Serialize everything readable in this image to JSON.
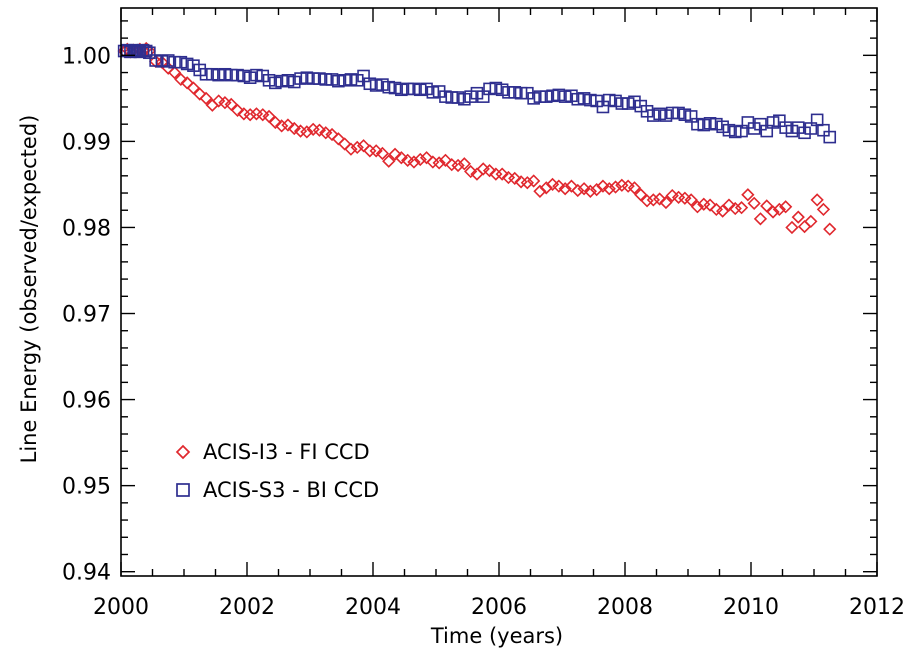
{
  "chart_data": {
    "type": "scatter",
    "title": "",
    "xlabel": "Time (years)",
    "ylabel": "Line Energy (observed/expected)",
    "xlim": [
      2000,
      2012
    ],
    "ylim": [
      0.9395,
      1.0055
    ],
    "x_ticks": [
      2000,
      2002,
      2004,
      2006,
      2008,
      2010,
      2012
    ],
    "x_tick_labels": [
      "2000",
      "2002",
      "2004",
      "2006",
      "2008",
      "2010",
      "2012"
    ],
    "y_ticks": [
      0.94,
      0.95,
      0.96,
      0.97,
      0.98,
      0.99,
      1.0
    ],
    "y_tick_labels": [
      "0.94",
      "0.95",
      "0.96",
      "0.97",
      "0.98",
      "0.99",
      "1.00"
    ],
    "grid": false,
    "legend_position": "lower-left",
    "series": [
      {
        "name": "ACIS-I3 - FI CCD",
        "marker": "diamond",
        "color": "#e0282e",
        "points": [
          [
            2000.05,
            1.0005
          ],
          [
            2000.1,
            1.0007
          ],
          [
            2000.15,
            1.0004
          ],
          [
            2000.2,
            1.0006
          ],
          [
            2000.25,
            1.0005
          ],
          [
            2000.3,
            1.0007
          ],
          [
            2000.35,
            1.0006
          ],
          [
            2000.4,
            1.0008
          ],
          [
            2000.45,
            1.0005
          ],
          [
            2000.55,
            0.9993
          ],
          [
            2000.65,
            0.9992
          ],
          [
            2000.75,
            0.9985
          ],
          [
            2000.85,
            0.998
          ],
          [
            2000.95,
            0.9972
          ],
          [
            2001.05,
            0.9968
          ],
          [
            2001.15,
            0.9962
          ],
          [
            2001.25,
            0.9955
          ],
          [
            2001.35,
            0.995
          ],
          [
            2001.45,
            0.9942
          ],
          [
            2001.55,
            0.9947
          ],
          [
            2001.65,
            0.9945
          ],
          [
            2001.75,
            0.9943
          ],
          [
            2001.85,
            0.9936
          ],
          [
            2001.95,
            0.9932
          ],
          [
            2002.05,
            0.9931
          ],
          [
            2002.15,
            0.9932
          ],
          [
            2002.25,
            0.9931
          ],
          [
            2002.35,
            0.9929
          ],
          [
            2002.45,
            0.9922
          ],
          [
            2002.55,
            0.9918
          ],
          [
            2002.65,
            0.9919
          ],
          [
            2002.75,
            0.9915
          ],
          [
            2002.85,
            0.9912
          ],
          [
            2002.95,
            0.9911
          ],
          [
            2003.05,
            0.9914
          ],
          [
            2003.15,
            0.9913
          ],
          [
            2003.25,
            0.991
          ],
          [
            2003.35,
            0.9908
          ],
          [
            2003.45,
            0.9903
          ],
          [
            2003.55,
            0.9897
          ],
          [
            2003.65,
            0.9891
          ],
          [
            2003.75,
            0.9893
          ],
          [
            2003.85,
            0.9895
          ],
          [
            2003.95,
            0.9889
          ],
          [
            2004.05,
            0.9889
          ],
          [
            2004.15,
            0.9886
          ],
          [
            2004.25,
            0.9877
          ],
          [
            2004.35,
            0.9885
          ],
          [
            2004.45,
            0.9881
          ],
          [
            2004.55,
            0.9878
          ],
          [
            2004.65,
            0.9876
          ],
          [
            2004.75,
            0.9879
          ],
          [
            2004.85,
            0.9881
          ],
          [
            2004.95,
            0.9876
          ],
          [
            2005.05,
            0.9875
          ],
          [
            2005.15,
            0.9878
          ],
          [
            2005.25,
            0.9873
          ],
          [
            2005.35,
            0.9872
          ],
          [
            2005.45,
            0.9874
          ],
          [
            2005.55,
            0.9865
          ],
          [
            2005.65,
            0.9862
          ],
          [
            2005.75,
            0.9868
          ],
          [
            2005.85,
            0.9866
          ],
          [
            2005.95,
            0.9862
          ],
          [
            2006.05,
            0.9862
          ],
          [
            2006.15,
            0.9858
          ],
          [
            2006.25,
            0.9857
          ],
          [
            2006.35,
            0.9853
          ],
          [
            2006.45,
            0.9852
          ],
          [
            2006.55,
            0.9854
          ],
          [
            2006.65,
            0.9842
          ],
          [
            2006.75,
            0.9846
          ],
          [
            2006.85,
            0.985
          ],
          [
            2006.95,
            0.9848
          ],
          [
            2007.05,
            0.9845
          ],
          [
            2007.15,
            0.9848
          ],
          [
            2007.25,
            0.9843
          ],
          [
            2007.35,
            0.9845
          ],
          [
            2007.45,
            0.9842
          ],
          [
            2007.55,
            0.9844
          ],
          [
            2007.65,
            0.9848
          ],
          [
            2007.75,
            0.9845
          ],
          [
            2007.85,
            0.9847
          ],
          [
            2007.95,
            0.9849
          ],
          [
            2008.05,
            0.9848
          ],
          [
            2008.15,
            0.9846
          ],
          [
            2008.25,
            0.9838
          ],
          [
            2008.35,
            0.9831
          ],
          [
            2008.45,
            0.9832
          ],
          [
            2008.55,
            0.9833
          ],
          [
            2008.65,
            0.9829
          ],
          [
            2008.75,
            0.9837
          ],
          [
            2008.85,
            0.9835
          ],
          [
            2008.95,
            0.9834
          ],
          [
            2009.05,
            0.9832
          ],
          [
            2009.15,
            0.9824
          ],
          [
            2009.25,
            0.9827
          ],
          [
            2009.35,
            0.9826
          ],
          [
            2009.45,
            0.9821
          ],
          [
            2009.55,
            0.9819
          ],
          [
            2009.65,
            0.9826
          ],
          [
            2009.75,
            0.9822
          ],
          [
            2009.85,
            0.9823
          ],
          [
            2009.95,
            0.9838
          ],
          [
            2010.05,
            0.9828
          ],
          [
            2010.15,
            0.981
          ],
          [
            2010.25,
            0.9825
          ],
          [
            2010.35,
            0.9818
          ],
          [
            2010.45,
            0.9821
          ],
          [
            2010.55,
            0.9824
          ],
          [
            2010.65,
            0.98
          ],
          [
            2010.75,
            0.9812
          ],
          [
            2010.85,
            0.9801
          ],
          [
            2010.95,
            0.9807
          ],
          [
            2011.05,
            0.9832
          ],
          [
            2011.15,
            0.9821
          ],
          [
            2011.25,
            0.9798
          ]
        ]
      },
      {
        "name": "ACIS-S3 - BI CCD",
        "marker": "square",
        "color": "#2e2e8f",
        "points": [
          [
            2000.05,
            1.0005
          ],
          [
            2000.1,
            1.0006
          ],
          [
            2000.15,
            1.0004
          ],
          [
            2000.2,
            1.0006
          ],
          [
            2000.25,
            1.0005
          ],
          [
            2000.3,
            1.0004
          ],
          [
            2000.35,
            1.0006
          ],
          [
            2000.4,
            1.0005
          ],
          [
            2000.45,
            1.0003
          ],
          [
            2000.55,
            0.9994
          ],
          [
            2000.65,
            0.9993
          ],
          [
            2000.75,
            0.9994
          ],
          [
            2000.85,
            0.9992
          ],
          [
            2000.95,
            0.9992
          ],
          [
            2001.05,
            0.999
          ],
          [
            2001.15,
            0.9988
          ],
          [
            2001.25,
            0.9983
          ],
          [
            2001.35,
            0.9978
          ],
          [
            2001.45,
            0.9978
          ],
          [
            2001.55,
            0.9977
          ],
          [
            2001.65,
            0.9978
          ],
          [
            2001.75,
            0.9977
          ],
          [
            2001.85,
            0.9977
          ],
          [
            2001.95,
            0.9976
          ],
          [
            2002.05,
            0.9974
          ],
          [
            2002.15,
            0.9977
          ],
          [
            2002.25,
            0.9976
          ],
          [
            2002.35,
            0.9971
          ],
          [
            2002.45,
            0.9968
          ],
          [
            2002.55,
            0.997
          ],
          [
            2002.65,
            0.9971
          ],
          [
            2002.75,
            0.9969
          ],
          [
            2002.85,
            0.9973
          ],
          [
            2002.95,
            0.9974
          ],
          [
            2003.05,
            0.9973
          ],
          [
            2003.15,
            0.9973
          ],
          [
            2003.25,
            0.9972
          ],
          [
            2003.35,
            0.9972
          ],
          [
            2003.45,
            0.997
          ],
          [
            2003.55,
            0.9971
          ],
          [
            2003.65,
            0.9972
          ],
          [
            2003.75,
            0.9971
          ],
          [
            2003.85,
            0.9976
          ],
          [
            2003.95,
            0.9967
          ],
          [
            2004.05,
            0.9965
          ],
          [
            2004.15,
            0.9966
          ],
          [
            2004.25,
            0.9963
          ],
          [
            2004.35,
            0.9962
          ],
          [
            2004.45,
            0.996
          ],
          [
            2004.55,
            0.9961
          ],
          [
            2004.65,
            0.9961
          ],
          [
            2004.75,
            0.996
          ],
          [
            2004.85,
            0.9961
          ],
          [
            2004.95,
            0.9957
          ],
          [
            2005.05,
            0.9958
          ],
          [
            2005.15,
            0.9952
          ],
          [
            2005.25,
            0.9951
          ],
          [
            2005.35,
            0.9951
          ],
          [
            2005.45,
            0.9949
          ],
          [
            2005.55,
            0.9952
          ],
          [
            2005.65,
            0.9956
          ],
          [
            2005.75,
            0.9952
          ],
          [
            2005.85,
            0.9961
          ],
          [
            2005.95,
            0.9962
          ],
          [
            2006.05,
            0.996
          ],
          [
            2006.15,
            0.9957
          ],
          [
            2006.25,
            0.9957
          ],
          [
            2006.35,
            0.9956
          ],
          [
            2006.45,
            0.9956
          ],
          [
            2006.55,
            0.995
          ],
          [
            2006.65,
            0.9952
          ],
          [
            2006.75,
            0.9952
          ],
          [
            2006.85,
            0.9953
          ],
          [
            2006.95,
            0.9954
          ],
          [
            2007.05,
            0.9952
          ],
          [
            2007.15,
            0.9953
          ],
          [
            2007.25,
            0.9949
          ],
          [
            2007.35,
            0.995
          ],
          [
            2007.45,
            0.9948
          ],
          [
            2007.55,
            0.9947
          ],
          [
            2007.65,
            0.994
          ],
          [
            2007.75,
            0.9948
          ],
          [
            2007.85,
            0.9947
          ],
          [
            2007.95,
            0.9944
          ],
          [
            2008.05,
            0.9944
          ],
          [
            2008.15,
            0.9946
          ],
          [
            2008.25,
            0.9941
          ],
          [
            2008.35,
            0.9935
          ],
          [
            2008.45,
            0.993
          ],
          [
            2008.55,
            0.9932
          ],
          [
            2008.65,
            0.993
          ],
          [
            2008.75,
            0.9933
          ],
          [
            2008.85,
            0.9933
          ],
          [
            2008.95,
            0.9931
          ],
          [
            2009.05,
            0.9929
          ],
          [
            2009.15,
            0.992
          ],
          [
            2009.25,
            0.9919
          ],
          [
            2009.35,
            0.9921
          ],
          [
            2009.45,
            0.992
          ],
          [
            2009.55,
            0.9917
          ],
          [
            2009.65,
            0.9913
          ],
          [
            2009.75,
            0.9911
          ],
          [
            2009.85,
            0.9912
          ],
          [
            2009.95,
            0.9922
          ],
          [
            2010.05,
            0.9915
          ],
          [
            2010.15,
            0.992
          ],
          [
            2010.25,
            0.9912
          ],
          [
            2010.35,
            0.9922
          ],
          [
            2010.45,
            0.9924
          ],
          [
            2010.55,
            0.9916
          ],
          [
            2010.65,
            0.9912
          ],
          [
            2010.75,
            0.9916
          ],
          [
            2010.85,
            0.991
          ],
          [
            2010.95,
            0.9915
          ],
          [
            2011.05,
            0.9925
          ],
          [
            2011.15,
            0.9913
          ],
          [
            2011.25,
            0.9905
          ]
        ]
      }
    ]
  }
}
